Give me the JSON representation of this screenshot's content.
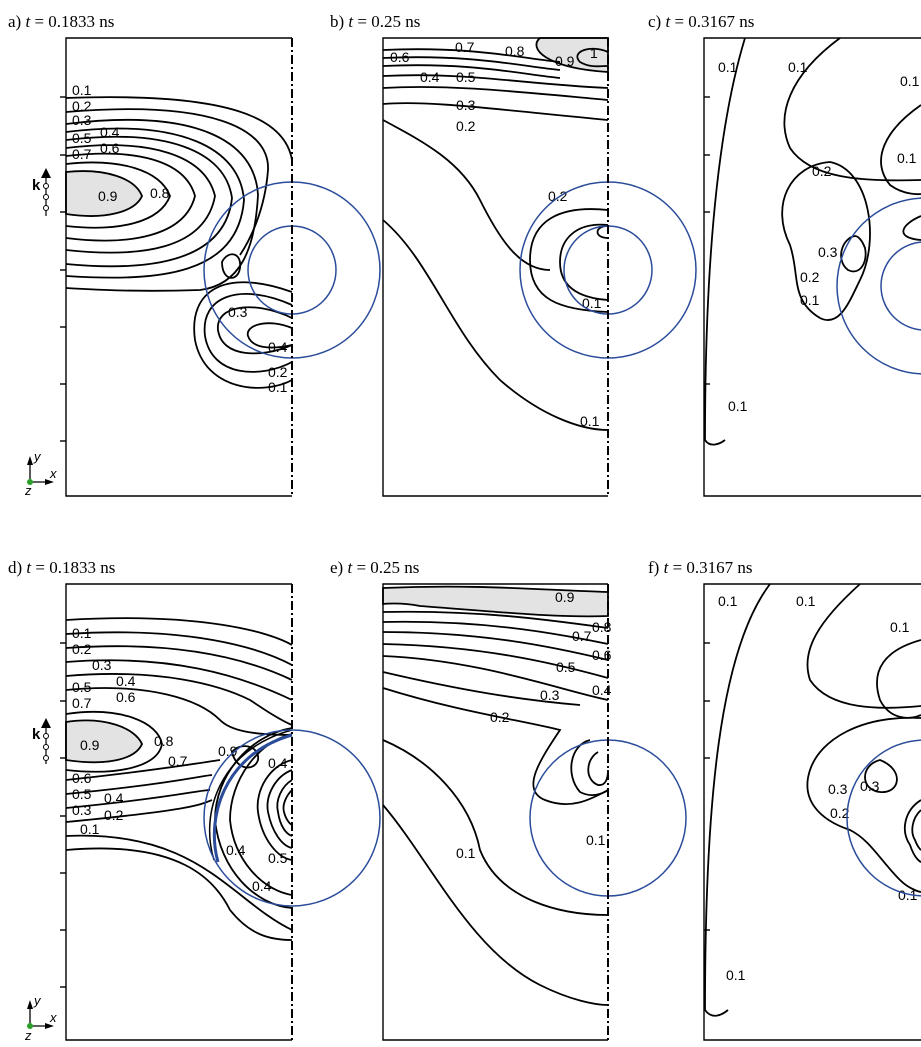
{
  "panels": [
    {
      "id": "a",
      "prefix": "a) ",
      "tvar": "t",
      "eq": " = 0.1833 ns",
      "labels": [
        "0.1",
        "0.2",
        "0.3",
        "0.4",
        "0.5",
        "0.6",
        "0.7",
        "0.9",
        "0.8",
        "0.3",
        "0.4",
        "0.2",
        "0.1"
      ]
    },
    {
      "id": "b",
      "prefix": "b) ",
      "tvar": "t",
      "eq": " = 0.25 ns",
      "labels": [
        "0.6",
        "0.7",
        "0.8",
        "0.9",
        "1",
        "0.4",
        "0.5",
        "0.3",
        "0.2",
        "0.2",
        "0.1",
        "0.1"
      ]
    },
    {
      "id": "c",
      "prefix": "c) ",
      "tvar": "t",
      "eq": " = 0.3167 ns",
      "labels": [
        "0.1",
        "0.1",
        "0.1",
        "0.1",
        "0.2",
        "0.3",
        "0.2",
        "0.1",
        "0.1"
      ]
    },
    {
      "id": "d",
      "prefix": "d) ",
      "tvar": "t",
      "eq": " = 0.1833 ns",
      "labels": [
        "0.1",
        "0.2",
        "0.3",
        "0.4",
        "0.5",
        "0.6",
        "0.7",
        "0.9",
        "0.8",
        "0.7",
        "0.9",
        "0.4",
        "0.6",
        "0.5",
        "0.4",
        "0.3",
        "0.2",
        "0.1",
        "0.4",
        "0.5",
        "0.4"
      ]
    },
    {
      "id": "e",
      "prefix": "e) ",
      "tvar": "t",
      "eq": " = 0.25 ns",
      "labels": [
        "0.9",
        "0.8",
        "0.7",
        "0.6",
        "0.5",
        "0.4",
        "0.3",
        "0.2",
        "0.1",
        "0.1"
      ]
    },
    {
      "id": "f",
      "prefix": "f) ",
      "tvar": "t",
      "eq": " = 0.3167 ns",
      "labels": [
        "0.1",
        "0.1",
        "0.1",
        "0.3",
        "0.3",
        "0.2",
        "0.1",
        "0.1"
      ]
    }
  ],
  "wave_vector_symbol": "k",
  "axes": {
    "y": "y",
    "x": "x",
    "z": "z"
  },
  "colors": {
    "contour": "#000000",
    "shaded": "#e3e3e3",
    "sphere": "#2a4c9a"
  }
}
